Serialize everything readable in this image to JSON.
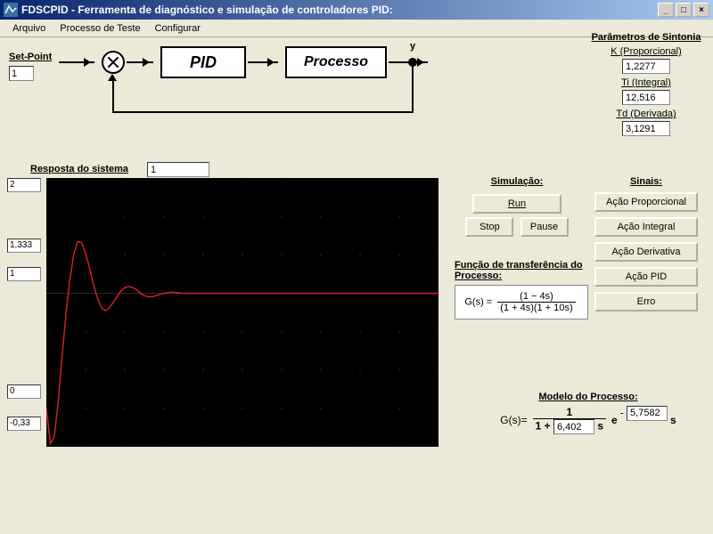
{
  "window": {
    "title": "FDSCPID - Ferramenta de diagnóstico e simulação de controladores PID:"
  },
  "menu": {
    "arquivo": "Arquivo",
    "processo": "Processo de Teste",
    "configurar": "Configurar"
  },
  "blockdiag": {
    "setpoint_label": "Set-Point",
    "setpoint_value": "1",
    "pid_label": "PID",
    "processo_label": "Processo",
    "output_label": "y"
  },
  "params": {
    "title": "Parâmetros de Sintonia",
    "k_label": "K (Proporcional)",
    "k_value": "1,2277",
    "ti_label": "Ti (Integral)",
    "ti_value": "12,516",
    "td_label": "Td (Derivada)",
    "td_value": "3,1291"
  },
  "response": {
    "label": "Resposta do sistema",
    "value": "1",
    "yticks": [
      "2",
      "1,333",
      "1",
      "0",
      "-0,33"
    ],
    "ytick_positions": [
      0,
      68,
      100,
      232,
      268
    ],
    "chart_bg": "#000000",
    "grid_color": "#303030",
    "curve_color": "#d02020",
    "xlim": [
      0,
      100
    ],
    "ylim": [
      -0.33,
      2
    ],
    "grid_xstep": 10,
    "grid_ystep": 0.333,
    "curve_points": [
      [
        0,
        0
      ],
      [
        1,
        -0.3
      ],
      [
        2,
        -0.25
      ],
      [
        3,
        0.05
      ],
      [
        4,
        0.45
      ],
      [
        5,
        0.82
      ],
      [
        6,
        1.12
      ],
      [
        7,
        1.34
      ],
      [
        8,
        1.45
      ],
      [
        9,
        1.44
      ],
      [
        10,
        1.35
      ],
      [
        11,
        1.22
      ],
      [
        12,
        1.08
      ],
      [
        13,
        0.96
      ],
      [
        14,
        0.88
      ],
      [
        15,
        0.85
      ],
      [
        16,
        0.87
      ],
      [
        17,
        0.92
      ],
      [
        18,
        0.97
      ],
      [
        19,
        1.02
      ],
      [
        20,
        1.05
      ],
      [
        21,
        1.06
      ],
      [
        22,
        1.05
      ],
      [
        23,
        1.03
      ],
      [
        24,
        1.0
      ],
      [
        25,
        0.98
      ],
      [
        26,
        0.97
      ],
      [
        27,
        0.97
      ],
      [
        28,
        0.98
      ],
      [
        29,
        0.99
      ],
      [
        30,
        1.0
      ],
      [
        32,
        1.01
      ],
      [
        35,
        1.0
      ],
      [
        40,
        1.0
      ],
      [
        50,
        1.0
      ],
      [
        70,
        1.0
      ],
      [
        100,
        1.0
      ]
    ]
  },
  "simulation": {
    "title": "Simulação:",
    "run": "Run",
    "stop": "Stop",
    "pause": "Pause"
  },
  "sinais": {
    "title": "Sinais:",
    "prop": "Ação Proporcional",
    "integ": "Ação Integral",
    "deriv": "Ação Derivativa",
    "pid": "Ação PID",
    "erro": "Erro"
  },
  "ftproc": {
    "title": "Função de transferência do Processo:",
    "lhs": "G(s) =",
    "num": "(1 − 4s)",
    "den": "(1 + 4s)(1 + 10s)"
  },
  "modelo": {
    "title": "Modelo do Processo:",
    "lhs": "G(s)=",
    "num": "1",
    "den_prefix": "1 +",
    "tau": "6,402",
    "s1": "s",
    "e": "e",
    "exp_minus": "-",
    "theta": "5,7582",
    "s2": "s"
  }
}
